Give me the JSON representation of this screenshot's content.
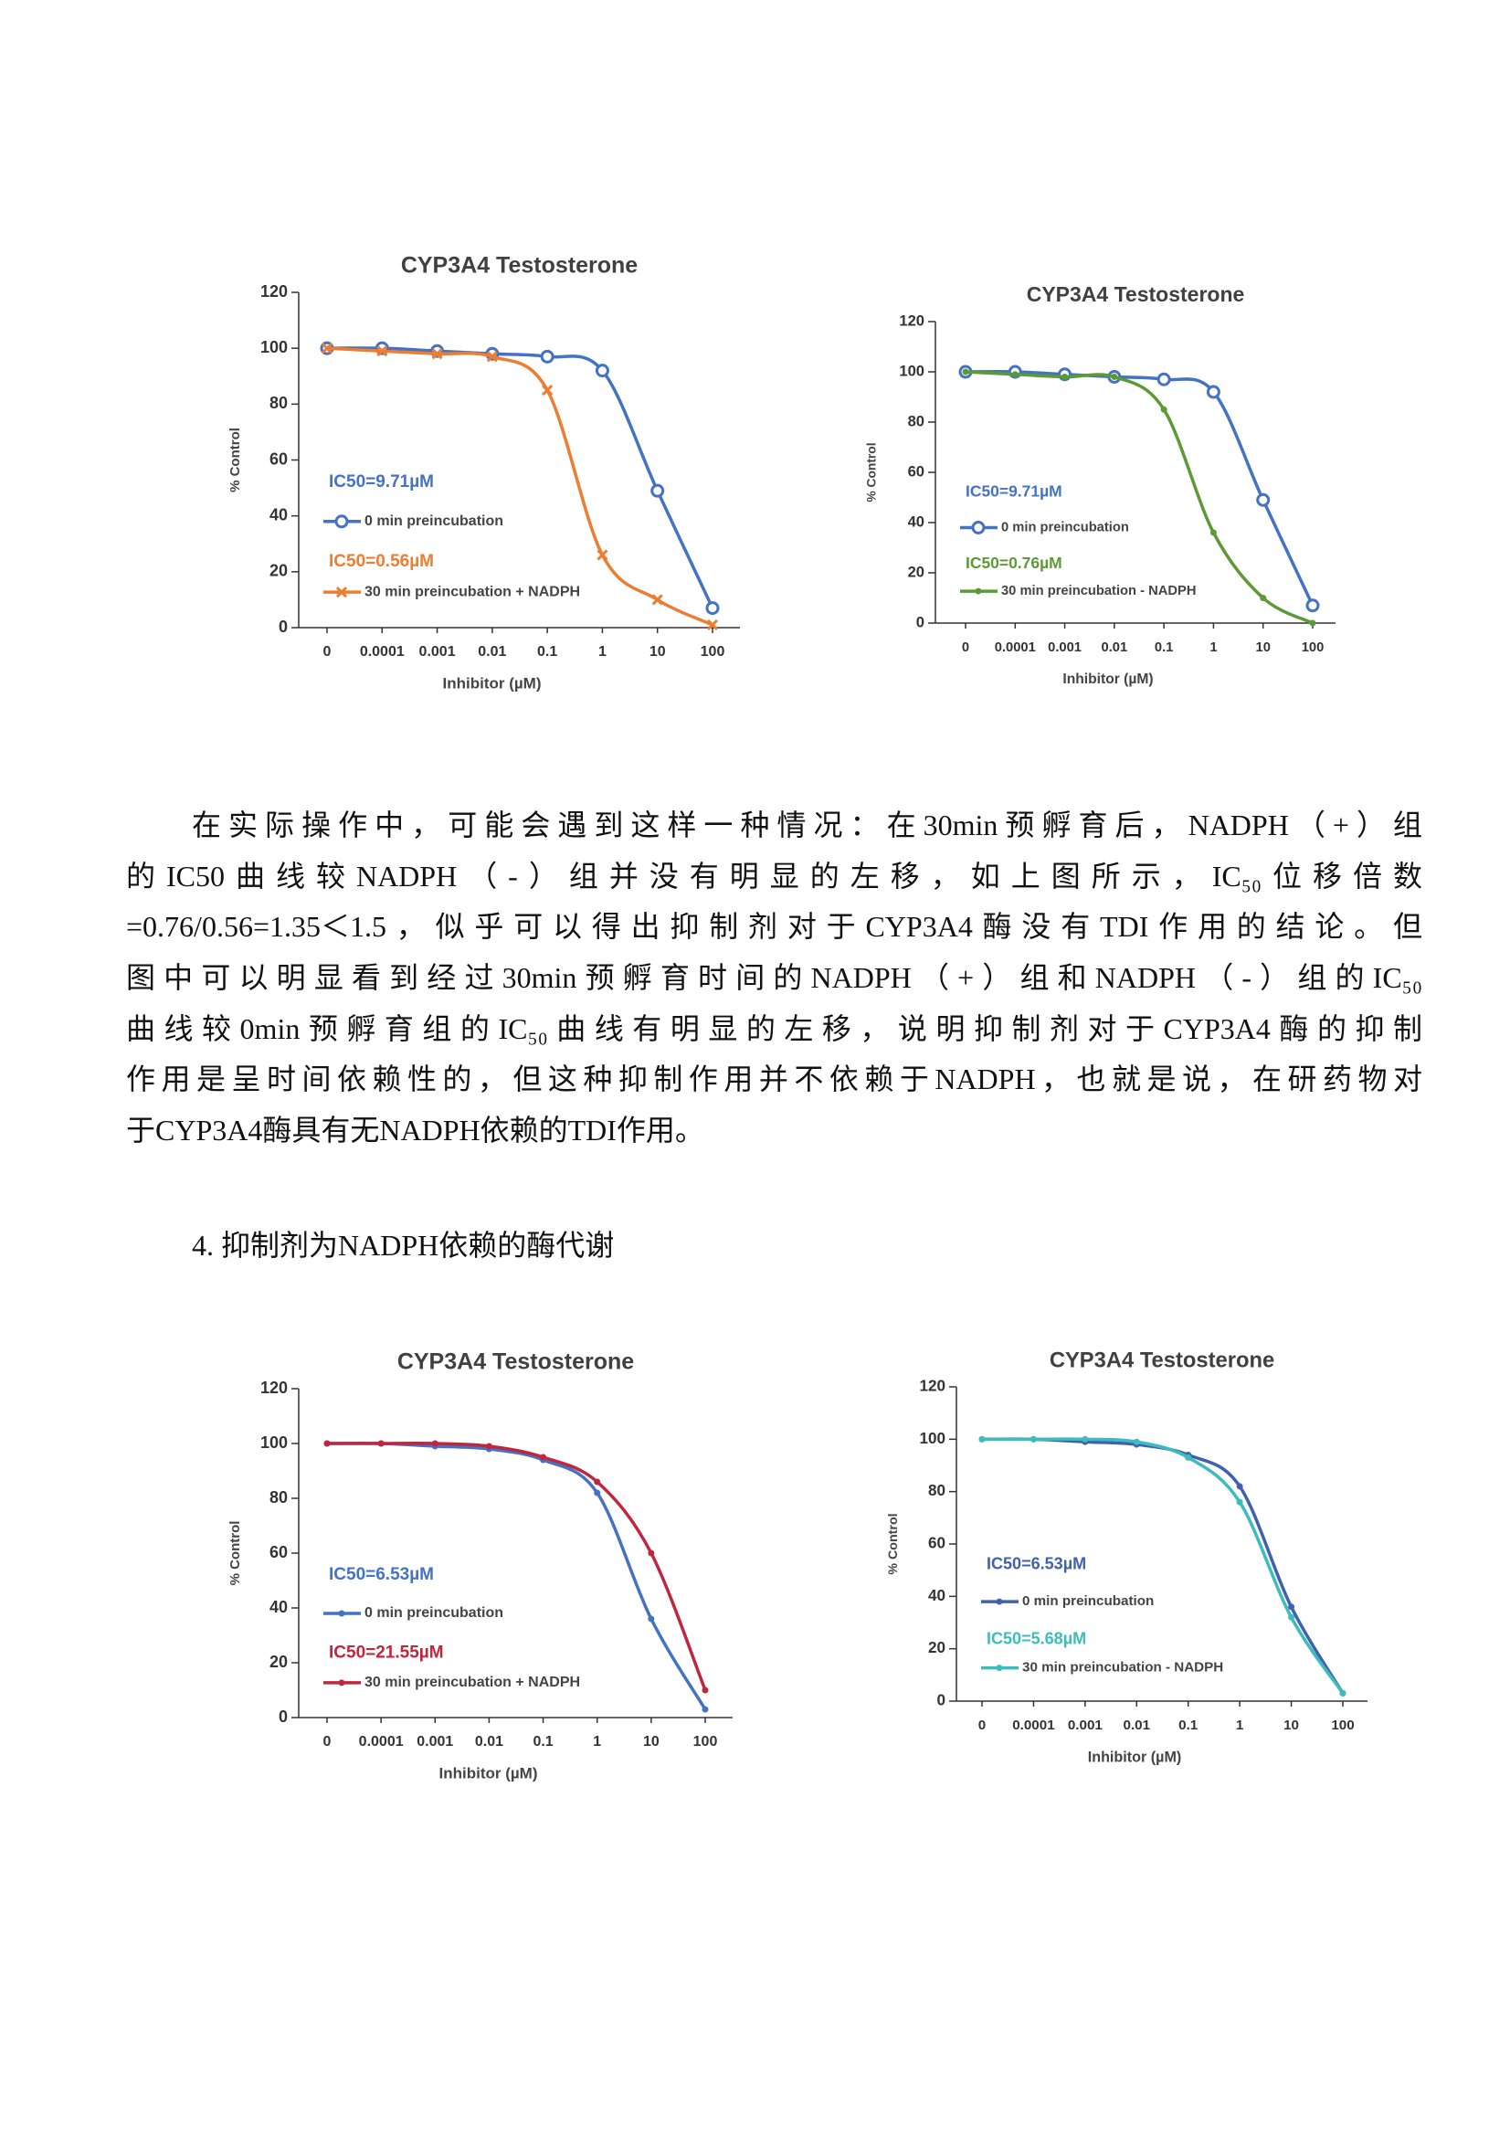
{
  "chart_data": [
    {
      "type": "line",
      "title": "CYP3A4 Testosterone",
      "x_label": "Inhibitor (µM)",
      "y_label": "% Control",
      "categories": [
        "0",
        "0.0001",
        "0.001",
        "0.01",
        "0.1",
        "1",
        "10",
        "100"
      ],
      "ylim": [
        0,
        120
      ],
      "yticks": [
        0,
        20,
        40,
        60,
        80,
        100,
        120
      ],
      "series": [
        {
          "name": "0 min preincubation",
          "annotation": "IC50=9.71µM",
          "color": "#4472c4",
          "marker": "circle",
          "values": [
            100,
            100,
            99,
            98,
            97,
            92,
            49,
            7
          ]
        },
        {
          "name": "30 min preincubation + NADPH",
          "annotation": "IC50=0.56µM",
          "color": "#ed7d31",
          "marker": "x",
          "values": [
            100,
            99,
            98,
            97,
            85,
            26,
            10,
            1
          ]
        }
      ]
    },
    {
      "type": "line",
      "title": "CYP3A4 Testosterone",
      "x_label": "Inhibitor (µM)",
      "y_label": "% Control",
      "categories": [
        "0",
        "0.0001",
        "0.001",
        "0.01",
        "0.1",
        "1",
        "10",
        "100"
      ],
      "ylim": [
        0,
        120
      ],
      "yticks": [
        0,
        20,
        40,
        60,
        80,
        100,
        120
      ],
      "series": [
        {
          "name": "0 min preincubation",
          "annotation": "IC50=9.71µM",
          "color": "#4472c4",
          "marker": "circle",
          "values": [
            100,
            100,
            99,
            98,
            97,
            92,
            49,
            7
          ]
        },
        {
          "name": "30 min preincubation - NADPH",
          "annotation": "IC50=0.76µM",
          "color": "#5b9a35",
          "marker": "dot",
          "values": [
            100,
            99,
            98,
            98,
            85,
            36,
            10,
            0
          ]
        }
      ]
    },
    {
      "type": "line",
      "title": "CYP3A4 Testosterone",
      "x_label": "Inhibitor (µM)",
      "y_label": "% Control",
      "categories": [
        "0",
        "0.0001",
        "0.001",
        "0.01",
        "0.1",
        "1",
        "10",
        "100"
      ],
      "ylim": [
        0,
        120
      ],
      "yticks": [
        0,
        20,
        40,
        60,
        80,
        100,
        120
      ],
      "series": [
        {
          "name": "0 min preincubation",
          "annotation": "IC50=6.53µM",
          "color": "#4472c4",
          "marker": "dot",
          "values": [
            100,
            100,
            99,
            98,
            94,
            82,
            36,
            3
          ]
        },
        {
          "name": "30 min preincubation + NADPH",
          "annotation": "IC50=21.55µM",
          "color": "#c0263d",
          "marker": "dot",
          "values": [
            100,
            100,
            100,
            99,
            95,
            86,
            60,
            10
          ]
        }
      ]
    },
    {
      "type": "line",
      "title": "CYP3A4 Testosterone",
      "x_label": "Inhibitor (µM)",
      "y_label": "% Control",
      "categories": [
        "0",
        "0.0001",
        "0.001",
        "0.01",
        "0.1",
        "1",
        "10",
        "100"
      ],
      "ylim": [
        0,
        120
      ],
      "yticks": [
        0,
        20,
        40,
        60,
        80,
        100,
        120
      ],
      "series": [
        {
          "name": "0 min preincubation",
          "annotation": "IC50=6.53µM",
          "color": "#4060b0",
          "marker": "dot",
          "values": [
            100,
            100,
            99,
            98,
            94,
            82,
            36,
            3
          ]
        },
        {
          "name": "30 min preincubation - NADPH",
          "annotation": "IC50=5.68µM",
          "color": "#3cbcbc",
          "marker": "dot",
          "values": [
            100,
            100,
            100,
            99,
            93,
            76,
            32,
            3
          ]
        }
      ]
    }
  ],
  "paragraph": [
    "在实际操作中，可能会遇到这样一种情况：在30min预孵育后，NADPH（+）组",
    "的IC50曲线较NADPH（-）组并没有明显的左移，如上图所示，IC₅₀位移倍数",
    "=0.76/0.56=1.35＜1.5，似乎可以得出抑制剂对于CYP3A4酶没有TDI作用的结论。但",
    "图中可以明显看到经过30min预孵育时间的NADPH（+）组和NADPH（-）组的IC₅₀",
    "曲线较0min预孵育组的IC₅₀曲线有明显的左移，说明抑制剂对于CYP3A4酶的抑制",
    "作用是呈时间依赖性的，但这种抑制作用并不依赖于NADPH，也就是说，在研药物对",
    "于CYP3A4酶具有无NADPH依赖的TDI作用。"
  ],
  "heading": "4. 抑制剂为NADPH依赖的酶代谢"
}
